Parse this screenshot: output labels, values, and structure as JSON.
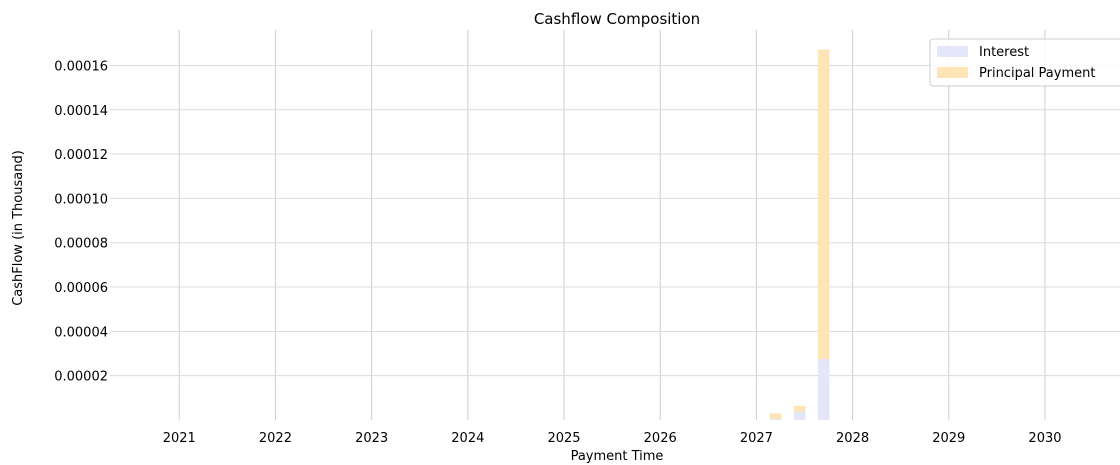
{
  "chart_data": {
    "type": "bar",
    "stacked": true,
    "title": "Cashflow Composition",
    "xlabel": "Payment Time",
    "ylabel": "CashFlow (in Thousand)",
    "x_ticks": [
      "2021",
      "2022",
      "2023",
      "2024",
      "2025",
      "2026",
      "2027",
      "2028",
      "2029",
      "2030"
    ],
    "y_ticks": [
      "0.00002",
      "0.00004",
      "0.00006",
      "0.00008",
      "0.00010",
      "0.00012",
      "0.00014",
      "0.00016"
    ],
    "xlim": [
      2020.28,
      2030.78
    ],
    "ylim": [
      0,
      0.000176
    ],
    "grid": true,
    "legend_position": "top-right",
    "bar_width_years": 0.12,
    "x": [
      2027.2,
      2027.45,
      2027.7
    ],
    "series": [
      {
        "name": "Interest",
        "color": "#e6e6fa",
        "values": [
          5e-07,
          3.8e-06,
          2.75e-05
        ]
      },
      {
        "name": "Principal Payment",
        "color": "#ffe4b5",
        "values": [
          2.5e-06,
          2.6e-06,
          0.0001397
        ]
      }
    ]
  }
}
